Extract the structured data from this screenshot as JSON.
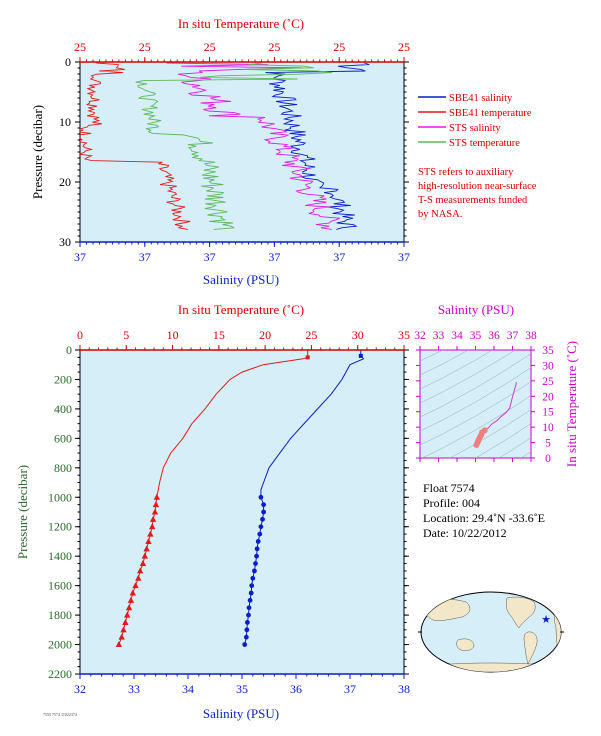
{
  "colors": {
    "plot_bg": "#d6eef8",
    "salinity": "#0a1ec8",
    "temperature": "#e31a1c",
    "sts_salinity": "#e01ee0",
    "sts_temperature": "#5cb85c",
    "axis_red": "#d40000",
    "axis_blue": "#0a1ec8",
    "axis_green": "#2a6a2a",
    "axis_magenta": "#c800c8"
  },
  "chart_data": [
    {
      "type": "line",
      "id": "near-surface-profile",
      "xlabel_top": "In situ Temperature (˚C)",
      "xlabel_bottom": "Salinity (PSU)",
      "ylabel": "Pressure (decibar)",
      "top_ticks": [
        "25",
        "25",
        "25",
        "25",
        "25",
        "25"
      ],
      "bottom_ticks": [
        "37",
        "37",
        "37",
        "37",
        "37",
        "37"
      ],
      "y_ticks": [
        0,
        10,
        20,
        30
      ],
      "ylim": [
        30,
        0
      ],
      "grid": false,
      "legend_position": "right",
      "series": [
        {
          "name": "SBE41 salinity"
        },
        {
          "name": "SBE41 temperature"
        },
        {
          "name": "STS salinity"
        },
        {
          "name": "STS temperature"
        }
      ],
      "note": [
        "STS refers to auxiliary",
        "high-resolution near-surface",
        "T-S measurements funded",
        "by NASA."
      ]
    },
    {
      "type": "line",
      "id": "full-depth-profile",
      "xlabel_top": "In situ Temperature (˚C)",
      "xlabel_bottom": "Salinity (PSU)",
      "ylabel": "Pressure (decibar)",
      "temp_ticks": [
        0,
        5,
        10,
        15,
        20,
        25,
        30,
        35
      ],
      "sal_ticks": [
        32,
        33,
        34,
        35,
        36,
        37,
        38
      ],
      "y_ticks": [
        0,
        200,
        400,
        600,
        800,
        1000,
        1200,
        1400,
        1600,
        1800,
        2000,
        2200
      ],
      "temp_lim": [
        0,
        35
      ],
      "sal_lim": [
        32,
        38
      ],
      "ylim": [
        2200,
        0
      ],
      "grid": false,
      "temperature": {
        "pressure": [
          0,
          50,
          60,
          100,
          150,
          200,
          300,
          400,
          500,
          600,
          700,
          800,
          900,
          1000,
          1050,
          1100,
          1150,
          1200,
          1250,
          1300,
          1350,
          1400,
          1450,
          1500,
          1550,
          1600,
          1650,
          1700,
          1750,
          1800,
          1850,
          1900,
          1950,
          2000
        ],
        "values": [
          24.6,
          24.6,
          24.1,
          19.8,
          17.5,
          16.2,
          14.7,
          13.5,
          12.1,
          11.1,
          9.8,
          9.0,
          8.6,
          8.3,
          8.2,
          8.1,
          7.9,
          7.8,
          7.6,
          7.4,
          7.2,
          7.0,
          6.8,
          6.5,
          6.3,
          6.0,
          5.7,
          5.5,
          5.3,
          5.1,
          4.9,
          4.7,
          4.5,
          4.2
        ]
      },
      "salinity": {
        "pressure": [
          0,
          40,
          60,
          100,
          200,
          300,
          400,
          500,
          600,
          700,
          800,
          900,
          950,
          1000,
          1050,
          1100,
          1150,
          1200,
          1250,
          1300,
          1350,
          1400,
          1450,
          1500,
          1550,
          1600,
          1650,
          1700,
          1750,
          1800,
          1850,
          1900,
          1950,
          2000
        ],
        "values": [
          37.2,
          37.2,
          37.25,
          37.0,
          36.85,
          36.65,
          36.4,
          36.15,
          35.9,
          35.7,
          35.5,
          35.4,
          35.35,
          35.35,
          35.4,
          35.4,
          35.38,
          35.35,
          35.33,
          35.3,
          35.28,
          35.27,
          35.25,
          35.23,
          35.2,
          35.18,
          35.17,
          35.15,
          35.13,
          35.12,
          35.1,
          35.09,
          35.08,
          35.05
        ]
      },
      "temperature_markers_from_pressure": 1000,
      "salinity_markers_from_pressure": 1000
    },
    {
      "type": "scatter",
      "id": "ts-diagram",
      "xlabel_top": "Salinity (PSU)",
      "ylabel_right": "In situ Temperature (˚C)",
      "x_ticks": [
        32,
        33,
        34,
        35,
        36,
        37,
        38
      ],
      "y_ticks": [
        0,
        5,
        10,
        15,
        20,
        25,
        30,
        35
      ],
      "xlim": [
        32,
        38
      ],
      "ylim": [
        0,
        35
      ],
      "points": [
        [
          35.05,
          4.2
        ],
        [
          35.1,
          4.9
        ],
        [
          35.15,
          5.5
        ],
        [
          35.2,
          6.3
        ],
        [
          35.25,
          6.8
        ],
        [
          35.3,
          7.4
        ],
        [
          35.35,
          8.3
        ],
        [
          35.5,
          9.0
        ],
        [
          35.7,
          9.8
        ],
        [
          35.9,
          11.1
        ],
        [
          36.15,
          12.1
        ],
        [
          36.4,
          13.5
        ],
        [
          36.65,
          14.7
        ],
        [
          36.85,
          16.2
        ],
        [
          37.0,
          19.8
        ],
        [
          37.2,
          24.1
        ],
        [
          37.2,
          24.6
        ]
      ]
    }
  ],
  "info": {
    "float": "Float  7574",
    "profile": "Profile:  004",
    "location": "Location:  29.4˚N  -33.6˚E",
    "date": "Date:  10/22/2012"
  },
  "map": {
    "marker_lat": 29.4,
    "marker_lon": -33.6
  }
}
